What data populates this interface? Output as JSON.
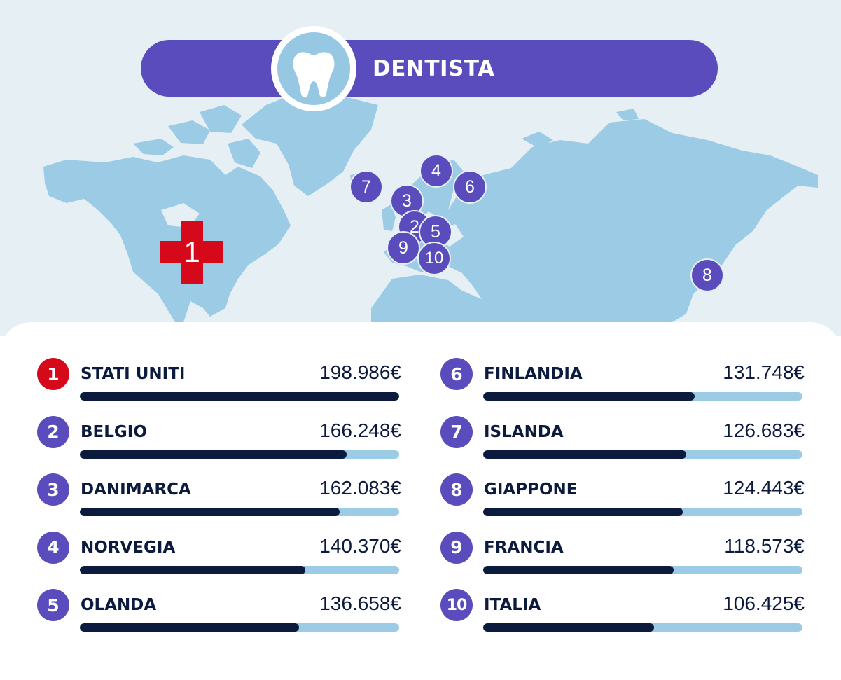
{
  "header": {
    "title": "DENTISTA",
    "icon": "tooth-icon"
  },
  "colors": {
    "accent": "#5a4cbd",
    "top_rank": "#d5091a",
    "bar_fill": "#0c1a3e",
    "bar_track": "#9ccbe6",
    "map_land": "#9ccbe6",
    "map_background": "#e6eff4"
  },
  "map_markers": [
    "1",
    "2",
    "3",
    "4",
    "5",
    "6",
    "7",
    "8",
    "9",
    "10"
  ],
  "chart_data": {
    "type": "bar",
    "title": "DENTISTA",
    "unit": "€",
    "categories": [
      "STATI UNITI",
      "BELGIO",
      "DANIMARCA",
      "NORVEGIA",
      "OLANDA",
      "FINLANDIA",
      "ISLANDA",
      "GIAPPONE",
      "FRANCIA",
      "ITALIA"
    ],
    "values": [
      198986,
      166248,
      162083,
      140370,
      136658,
      131748,
      126683,
      124443,
      118573,
      106425
    ],
    "ylim": [
      0,
      198986
    ],
    "items": [
      {
        "rank": "1",
        "country": "STATI UNITI",
        "value": 198986,
        "label": "198.986€"
      },
      {
        "rank": "2",
        "country": "BELGIO",
        "value": 166248,
        "label": "166.248€"
      },
      {
        "rank": "3",
        "country": "DANIMARCA",
        "value": 162083,
        "label": "162.083€"
      },
      {
        "rank": "4",
        "country": "NORVEGIA",
        "value": 140370,
        "label": "140.370€"
      },
      {
        "rank": "5",
        "country": "OLANDA",
        "value": 136658,
        "label": "136.658€"
      },
      {
        "rank": "6",
        "country": "FINLANDIA",
        "value": 131748,
        "label": "131.748€"
      },
      {
        "rank": "7",
        "country": "ISLANDA",
        "value": 126683,
        "label": "126.683€"
      },
      {
        "rank": "8",
        "country": "GIAPPONE",
        "value": 124443,
        "label": "124.443€"
      },
      {
        "rank": "9",
        "country": "FRANCIA",
        "value": 118573,
        "label": "118.573€"
      },
      {
        "rank": "10",
        "country": "ITALIA",
        "value": 106425,
        "label": "106.425€"
      }
    ]
  }
}
